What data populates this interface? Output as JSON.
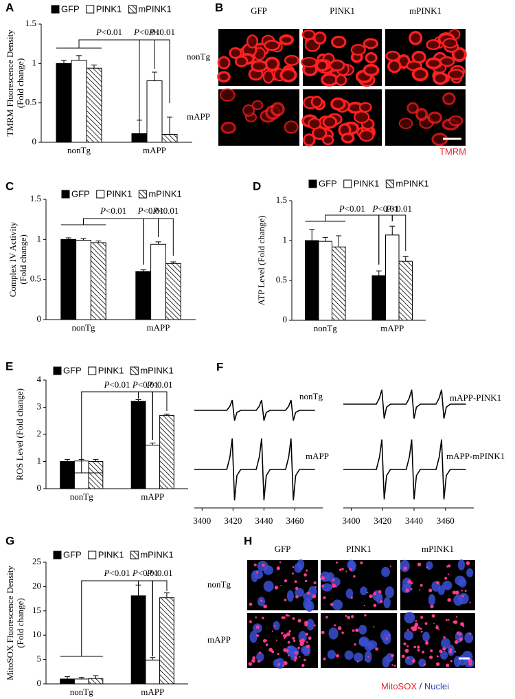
{
  "chart_data": [
    {
      "type": "bar",
      "panel": "A",
      "ylabel": [
        "TMRM  Fluorescence Density",
        "(Fold change)"
      ],
      "categories": [
        "nonTg",
        "mAPP"
      ],
      "series": [
        {
          "name": "GFP",
          "color": "#000000",
          "values": [
            1.0,
            0.11
          ],
          "errors": [
            0.04,
            0.17
          ]
        },
        {
          "name": "PINK1",
          "color": "#ffffff",
          "values": [
            1.04,
            0.78
          ],
          "errors": [
            0.06,
            0.11
          ]
        },
        {
          "name": "mPINK1",
          "color": "#ffffff",
          "hatch": true,
          "values": [
            0.94,
            0.1
          ],
          "errors": [
            0.04,
            0.22
          ]
        }
      ],
      "ylim": [
        0,
        1.5
      ],
      "yticks": [
        0,
        0.5,
        1,
        1.5
      ],
      "annotations": [
        "P<0.01",
        "P<0.01",
        "P<0.01"
      ]
    },
    {
      "type": "bar",
      "panel": "C",
      "ylabel": [
        "Complex IV Activity",
        "(Fold change)"
      ],
      "categories": [
        "nonTg",
        "mAPP"
      ],
      "series": [
        {
          "name": "GFP",
          "color": "#000000",
          "values": [
            1.0,
            0.6
          ],
          "errors": [
            0.02,
            0.02
          ]
        },
        {
          "name": "PINK1",
          "color": "#ffffff",
          "values": [
            0.99,
            0.94
          ],
          "errors": [
            0.02,
            0.03
          ]
        },
        {
          "name": "mPINK1",
          "color": "#ffffff",
          "hatch": true,
          "values": [
            0.96,
            0.7
          ],
          "errors": [
            0.02,
            0.02
          ]
        }
      ],
      "ylim": [
        0,
        1.5
      ],
      "yticks": [
        0,
        0.5,
        1,
        1.5
      ],
      "annotations": [
        "P<0.01",
        "P<0.01",
        "P<0.01"
      ]
    },
    {
      "type": "bar",
      "panel": "D",
      "ylabel": [
        "ATP Level (Fold change)"
      ],
      "categories": [
        "nonTg",
        "mAPP"
      ],
      "series": [
        {
          "name": "GFP",
          "color": "#000000",
          "values": [
            1.0,
            0.56
          ],
          "errors": [
            0.14,
            0.06
          ]
        },
        {
          "name": "PINK1",
          "color": "#ffffff",
          "values": [
            0.99,
            1.07
          ],
          "errors": [
            0.05,
            0.11
          ]
        },
        {
          "name": "mPINK1",
          "color": "#ffffff",
          "hatch": true,
          "values": [
            0.92,
            0.74
          ],
          "errors": [
            0.14,
            0.06
          ]
        }
      ],
      "ylim": [
        0,
        1.5
      ],
      "yticks": [
        0,
        0.5,
        1,
        1.5
      ],
      "annotations": [
        "P<0.01",
        "P<0.01",
        "P<0.01"
      ]
    },
    {
      "type": "bar",
      "panel": "E",
      "ylabel": [
        "ROS Level (Fold change)"
      ],
      "categories": [
        "nonTg",
        "mAPP"
      ],
      "series": [
        {
          "name": "GFP",
          "color": "#000000",
          "values": [
            1.0,
            3.22
          ],
          "errors": [
            0.08,
            0.06
          ]
        },
        {
          "name": "PINK1",
          "color": "#ffffff",
          "values": [
            1.02,
            1.6
          ],
          "errors": [
            0.06,
            0.08
          ]
        },
        {
          "name": "mPINK1",
          "color": "#ffffff",
          "hatch": true,
          "values": [
            1.0,
            2.7
          ],
          "errors": [
            0.08,
            0.05
          ]
        }
      ],
      "ylim": [
        0,
        4
      ],
      "yticks": [
        0,
        1,
        2,
        3,
        4
      ],
      "annotations": [
        "P<0.01",
        "P<0.01",
        "P<0.01"
      ]
    },
    {
      "type": "line",
      "panel": "F",
      "color": "#000000",
      "x": [
        3395,
        3416,
        3418,
        3419.5,
        3421,
        3422.5,
        3425,
        3435,
        3437,
        3438.5,
        3440,
        3441.5,
        3444,
        3454,
        3456,
        3457.5,
        3459,
        3460.5,
        3463,
        3473
      ],
      "xlim": [
        3395,
        3478
      ],
      "xticks": [
        3400,
        3420,
        3440,
        3460
      ],
      "series": [
        {
          "name": "nonTg",
          "values": [
            0,
            0,
            0.4,
            1,
            -1,
            -0.2,
            0,
            0,
            0.4,
            1,
            -1,
            -0.2,
            0,
            0,
            0.4,
            1,
            -1,
            -0.2,
            0,
            0
          ]
        },
        {
          "name": "mAPP",
          "values": [
            0,
            0,
            1.2,
            3,
            -3,
            -0.6,
            0,
            0,
            1.2,
            3,
            -3,
            -0.6,
            0,
            0,
            1.2,
            3,
            -3,
            -0.6,
            0,
            0
          ]
        },
        {
          "name": "mAPP-PINK1",
          "values": [
            0,
            0,
            0.6,
            1.4,
            -1.4,
            -0.3,
            0,
            0,
            0.6,
            1.4,
            -1.4,
            -0.3,
            0,
            0,
            0.6,
            1.4,
            -1.4,
            -0.3,
            0,
            0
          ]
        },
        {
          "name": "mAPP-mPINK1",
          "values": [
            0,
            0,
            1.2,
            2.9,
            -2.9,
            -0.6,
            0,
            0,
            1.2,
            2.9,
            -2.9,
            -0.6,
            0,
            0,
            1.2,
            2.9,
            -2.9,
            -0.6,
            0,
            0
          ]
        }
      ]
    },
    {
      "type": "bar",
      "panel": "G",
      "ylabel": [
        "MitoSOX  Fluorescence Density",
        "(Fold change)"
      ],
      "categories": [
        "nonTg",
        "mAPP"
      ],
      "series": [
        {
          "name": "GFP",
          "color": "#000000",
          "values": [
            1.0,
            18.1
          ],
          "errors": [
            0.5,
            2.2
          ]
        },
        {
          "name": "PINK1",
          "color": "#ffffff",
          "values": [
            1.0,
            4.9
          ],
          "errors": [
            0.3,
            0.5
          ]
        },
        {
          "name": "mPINK1",
          "color": "#ffffff",
          "hatch": true,
          "values": [
            1.1,
            17.7
          ],
          "errors": [
            0.6,
            1.0
          ]
        }
      ],
      "ylim": [
        0,
        25
      ],
      "yticks": [
        0,
        5,
        10,
        15,
        20,
        25
      ],
      "annotations": [
        "P<0.01",
        "P<0.01",
        "P<0.01"
      ]
    }
  ],
  "image_panels": [
    {
      "panel": "B",
      "columns": [
        "GFP",
        "PINK1",
        "mPINK1"
      ],
      "rows": [
        "nonTg",
        "mAPP"
      ],
      "caption": [
        {
          "text": "TMRM",
          "color": "#e8262c"
        }
      ]
    },
    {
      "panel": "H",
      "columns": [
        "GFP",
        "PINK1",
        "mPINK1"
      ],
      "rows": [
        "nonTg",
        "mAPP"
      ],
      "caption": [
        {
          "text": "MitoSOX",
          "color": "#e8262c"
        },
        {
          "text": "/",
          "color": "#1f2a6b"
        },
        {
          "text": "Nuclei",
          "color": "#2b3fae"
        }
      ]
    }
  ]
}
